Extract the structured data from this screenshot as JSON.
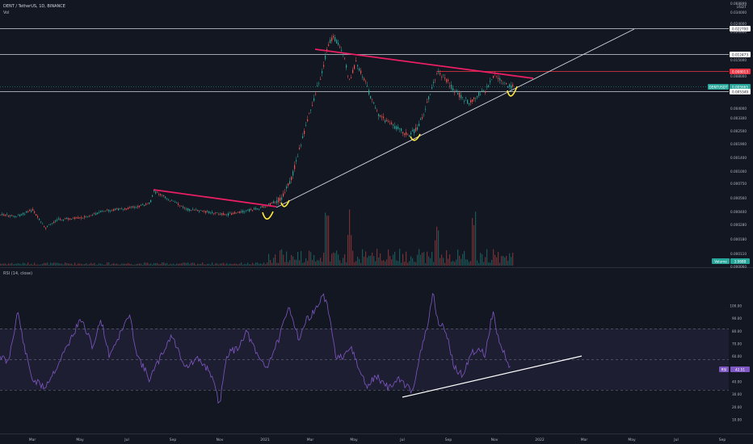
{
  "header": {
    "symbol_line": "DENT / TetherUS, 1D, BINANCE",
    "volume_label": "Vol"
  },
  "price_axis": {
    "unit": "USDT",
    "ticks": [
      "0.068899",
      "0.034000",
      "0.024000",
      "0.020000",
      "0.015000",
      "0.008000",
      "0.006600",
      "0.004000",
      "0.003300",
      "0.002500",
      "0.001900",
      "0.001400",
      "0.001000",
      "0.000750",
      "0.000560",
      "0.000400",
      "0.000280",
      "0.000180",
      "0.000110",
      "0.000060",
      "0.000020"
    ]
  },
  "price_tags": [
    {
      "name": "level-tag-top",
      "text": "0.022700",
      "bg": "#ffffff",
      "fg": "#131722"
    },
    {
      "name": "level-tag-upper",
      "text": "0.012473",
      "bg": "#ffffff",
      "fg": "#131722"
    },
    {
      "name": "level-tag-red",
      "text": "0.008013",
      "bg": "#f23645",
      "fg": "#ffffff"
    },
    {
      "name": "last-price-tag",
      "text": "0.005665",
      "bg": "#26a69a",
      "fg": "#ffffff"
    },
    {
      "name": "level-tag-lower",
      "text": "0.005349",
      "bg": "#ffffff",
      "fg": "#131722"
    }
  ],
  "symbol_tag": {
    "text": "DENTUSDT",
    "bg": "#26a69a"
  },
  "volume_tag": {
    "name": "Volume",
    "value": "3.988B",
    "bg": "#26a69a"
  },
  "rsi": {
    "title": "RSI (14, close)",
    "value": "42.51",
    "tag_name": "RSI",
    "ticks": [
      "100.00",
      "90.00",
      "80.00",
      "70.00",
      "60.00",
      "50.00",
      "40.00",
      "30.00",
      "20.00",
      "10.00"
    ],
    "band_upper": 70,
    "band_lower": 30,
    "mid": 50
  },
  "time_axis": {
    "labels": [
      "Mar",
      "May",
      "Jul",
      "Sep",
      "Nov",
      "2021",
      "Mar",
      "May",
      "Jul",
      "Sep",
      "Nov",
      "2022",
      "Mar",
      "May",
      "Jul",
      "Sep"
    ]
  },
  "colors": {
    "background": "#131722",
    "up": "#26a69a",
    "down": "#ef5350",
    "rsi_line": "#7e57c2",
    "rsi_band": "#7e57c2",
    "trendline": "#e91e63",
    "support_line": "#d1d4dc",
    "highlight": "#ffeb3b"
  }
}
